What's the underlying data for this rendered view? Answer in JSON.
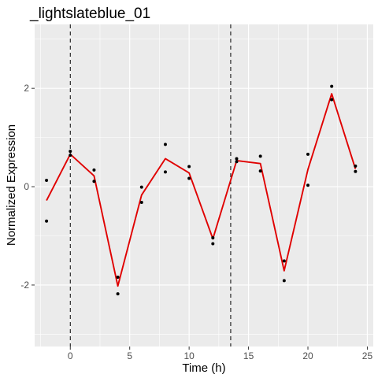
{
  "chart_data": {
    "type": "line",
    "title": "_lightslateblue_01",
    "xlabel": "Time (h)",
    "ylabel": "Normalized Expression",
    "xlim": [
      -3,
      25.5
    ],
    "ylim": [
      -3.25,
      3.3
    ],
    "x_ticks": [
      0,
      5,
      10,
      15,
      20,
      25
    ],
    "x_tick_labels": [
      "0",
      "5",
      "10",
      "15",
      "20",
      "25"
    ],
    "y_ticks": [
      -2,
      0,
      2
    ],
    "y_tick_labels": [
      "-2",
      "0",
      "2"
    ],
    "grid": true,
    "vlines": [
      0,
      13.5
    ],
    "line_color": "#e00000",
    "point_color": "#000000",
    "panel_color": "#ebebeb",
    "grid_color": "#ffffff",
    "series": [
      {
        "type": "line",
        "x": [
          -2,
          0,
          2,
          4,
          6,
          8,
          10,
          12,
          14,
          16,
          18,
          20,
          22,
          24
        ],
        "y": [
          -0.28,
          0.66,
          0.22,
          -2.02,
          -0.17,
          0.57,
          0.28,
          -1.06,
          0.53,
          0.47,
          -1.71,
          0.35,
          1.89,
          0.36
        ]
      },
      {
        "type": "scatter",
        "points": [
          [
            -2,
            0.13
          ],
          [
            -2,
            -0.7
          ],
          [
            0,
            0.72
          ],
          [
            0,
            0.64
          ],
          [
            2,
            0.34
          ],
          [
            2,
            0.11
          ],
          [
            4,
            -1.84
          ],
          [
            4,
            -2.18
          ],
          [
            6,
            -0.01
          ],
          [
            6,
            -0.32
          ],
          [
            8,
            0.86
          ],
          [
            8,
            0.3
          ],
          [
            10,
            0.41
          ],
          [
            10,
            0.17
          ],
          [
            12,
            -1.04
          ],
          [
            12,
            -1.16
          ],
          [
            14,
            0.57
          ],
          [
            14,
            0.51
          ],
          [
            16,
            0.62
          ],
          [
            16,
            0.32
          ],
          [
            18,
            -1.51
          ],
          [
            18,
            -1.91
          ],
          [
            20,
            0.66
          ],
          [
            20,
            0.03
          ],
          [
            22,
            2.04
          ],
          [
            22,
            1.77
          ],
          [
            24,
            0.42
          ],
          [
            24,
            0.31
          ]
        ]
      }
    ]
  }
}
